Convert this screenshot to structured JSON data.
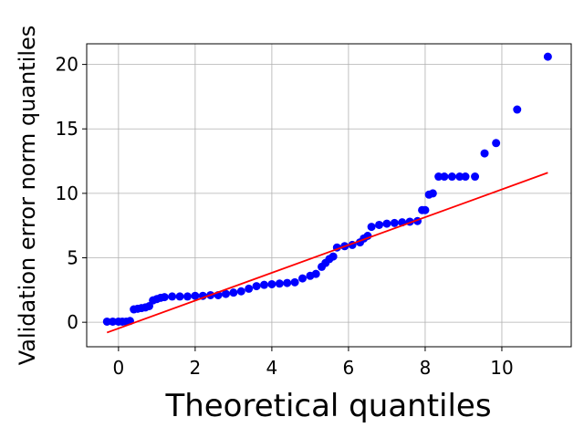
{
  "chart_data": {
    "type": "scatter",
    "x_label": "Theoretical quantiles",
    "y_label": "Validation error norm quantiles",
    "xlim": [
      -0.83,
      11.81
    ],
    "ylim": [
      -1.9,
      21.6
    ],
    "xticks": [
      0,
      2,
      4,
      6,
      8,
      10
    ],
    "yticks": [
      0,
      5,
      10,
      15,
      20
    ],
    "grid": true,
    "series": [
      {
        "type": "scatter",
        "color": "#0000ff",
        "x": [
          -0.3,
          -0.15,
          0,
          0.1,
          0.2,
          0.3,
          0.4,
          0.5,
          0.6,
          0.7,
          0.8,
          0.9,
          1.0,
          1.1,
          1.2,
          1.4,
          1.6,
          1.8,
          2.0,
          2.2,
          2.4,
          2.6,
          2.8,
          3.0,
          3.2,
          3.4,
          3.6,
          3.8,
          4.0,
          4.2,
          4.4,
          4.6,
          4.8,
          5.0,
          5.15,
          5.3,
          5.4,
          5.5,
          5.6,
          5.7,
          5.9,
          6.1,
          6.3,
          6.4,
          6.5,
          6.6,
          6.8,
          7.0,
          7.2,
          7.4,
          7.6,
          7.8,
          7.92,
          8.0,
          8.1,
          8.2,
          8.35,
          8.5,
          8.7,
          8.9,
          9.05,
          9.3,
          9.55,
          9.85,
          10.4,
          11.2
        ],
        "values": [
          0.05,
          0.05,
          0.05,
          0.05,
          0.05,
          0.1,
          1.0,
          1.05,
          1.1,
          1.15,
          1.25,
          1.7,
          1.8,
          1.9,
          1.95,
          2.0,
          2.0,
          2.0,
          2.05,
          2.05,
          2.1,
          2.1,
          2.2,
          2.3,
          2.4,
          2.6,
          2.8,
          2.9,
          2.95,
          3.0,
          3.05,
          3.1,
          3.4,
          3.6,
          3.75,
          4.3,
          4.6,
          4.9,
          5.1,
          5.8,
          5.9,
          6.0,
          6.2,
          6.5,
          6.7,
          7.4,
          7.55,
          7.65,
          7.7,
          7.75,
          7.8,
          7.85,
          8.7,
          8.7,
          9.9,
          10.0,
          11.3,
          11.3,
          11.3,
          11.3,
          11.3,
          11.3,
          13.1,
          13.9,
          16.5,
          20.6
        ]
      },
      {
        "type": "line",
        "color": "#ff0000",
        "x": [
          -0.3,
          11.2
        ],
        "values": [
          -0.8,
          11.6
        ]
      }
    ]
  }
}
